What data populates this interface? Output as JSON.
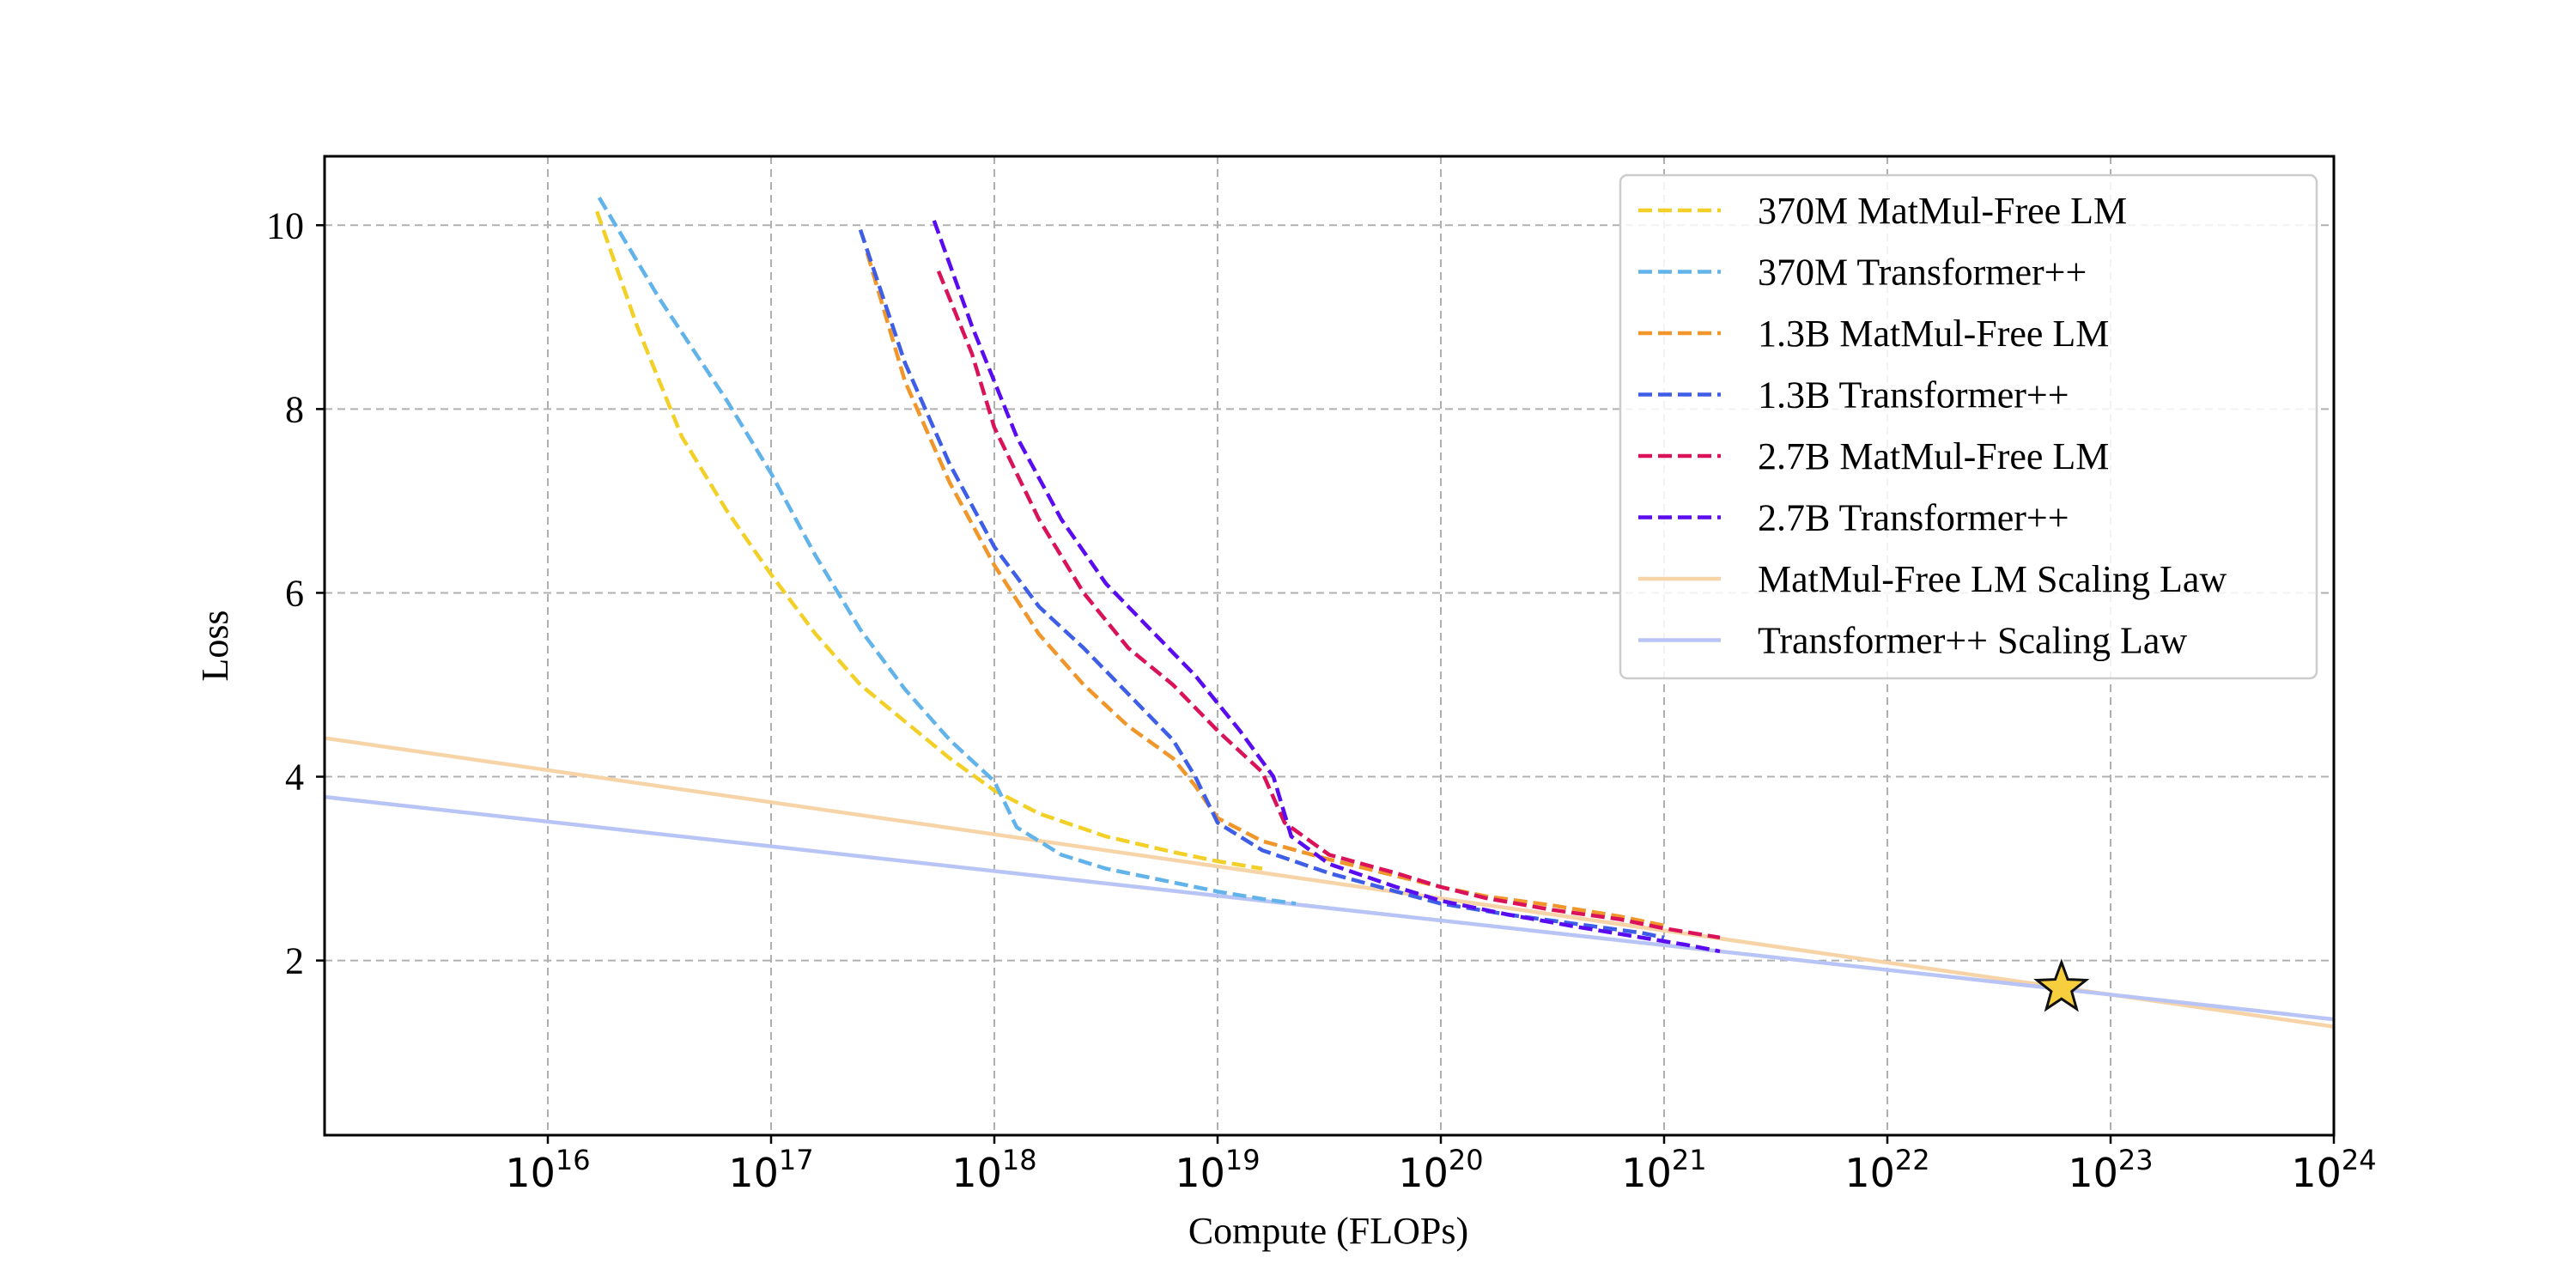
{
  "chart_data": {
    "type": "line",
    "xscale": "log",
    "xlabel": "Compute (FLOPs)",
    "ylabel": "Loss",
    "xlim": [
      1000000000000000.0,
      1e+24
    ],
    "ylim": [
      0.1,
      10.75
    ],
    "grid": true,
    "legend_position": "top-right",
    "x_ticks": [
      {
        "exp": 16,
        "base": "10",
        "sup": "16"
      },
      {
        "exp": 17,
        "base": "10",
        "sup": "17"
      },
      {
        "exp": 18,
        "base": "10",
        "sup": "18"
      },
      {
        "exp": 19,
        "base": "10",
        "sup": "19"
      },
      {
        "exp": 20,
        "base": "10",
        "sup": "20"
      },
      {
        "exp": 21,
        "base": "10",
        "sup": "21"
      },
      {
        "exp": 22,
        "base": "10",
        "sup": "22"
      },
      {
        "exp": 23,
        "base": "10",
        "sup": "23"
      },
      {
        "exp": 24,
        "base": "10",
        "sup": "24"
      }
    ],
    "y_ticks": [
      {
        "value": 2,
        "label": "2"
      },
      {
        "value": 4,
        "label": "4"
      },
      {
        "value": 6,
        "label": "6"
      },
      {
        "value": 8,
        "label": "8"
      },
      {
        "value": 10,
        "label": "10"
      }
    ],
    "series": [
      {
        "name": "370M MatMul-Free LM",
        "color": "#f2d027",
        "style": "dashed",
        "log10_x": [
          16.22,
          16.4,
          16.6,
          16.8,
          17.0,
          17.2,
          17.4,
          17.6,
          17.8,
          18.0,
          18.2,
          18.5,
          18.8,
          19.0,
          19.2
        ],
        "y": [
          10.15,
          8.9,
          7.7,
          6.9,
          6.2,
          5.55,
          5.0,
          4.6,
          4.2,
          3.85,
          3.6,
          3.35,
          3.18,
          3.08,
          3.0
        ]
      },
      {
        "name": "370M Transformer++",
        "color": "#62b3ea",
        "style": "dashed",
        "log10_x": [
          16.23,
          16.5,
          16.8,
          17.0,
          17.2,
          17.4,
          17.6,
          17.8,
          18.0,
          18.1,
          18.3,
          18.5,
          18.8,
          19.0,
          19.2,
          19.35
        ],
        "y": [
          10.3,
          9.2,
          8.1,
          7.3,
          6.4,
          5.6,
          4.95,
          4.4,
          3.95,
          3.45,
          3.15,
          3.0,
          2.85,
          2.75,
          2.67,
          2.62
        ]
      },
      {
        "name": "1.3B MatMul-Free LM",
        "color": "#f0962a",
        "style": "dashed",
        "log10_x": [
          17.43,
          17.6,
          17.8,
          18.0,
          18.2,
          18.4,
          18.6,
          18.8,
          18.9,
          19.0,
          19.2,
          19.5,
          19.8,
          20.0,
          20.2,
          20.5,
          20.8,
          21.0
        ],
        "y": [
          9.7,
          8.3,
          7.2,
          6.3,
          5.55,
          5.0,
          4.55,
          4.2,
          3.9,
          3.55,
          3.3,
          3.1,
          2.92,
          2.8,
          2.7,
          2.6,
          2.48,
          2.38
        ]
      },
      {
        "name": "1.3B Transformer++",
        "color": "#3e5ee8",
        "style": "dashed",
        "log10_x": [
          17.4,
          17.6,
          17.8,
          18.0,
          18.2,
          18.4,
          18.6,
          18.8,
          18.9,
          19.0,
          19.2,
          19.5,
          19.8,
          20.0,
          20.3,
          20.6,
          20.9,
          21.0
        ],
        "y": [
          9.95,
          8.5,
          7.4,
          6.5,
          5.85,
          5.4,
          4.9,
          4.4,
          4.0,
          3.5,
          3.2,
          2.95,
          2.75,
          2.62,
          2.5,
          2.4,
          2.3,
          2.25
        ]
      },
      {
        "name": "2.7B MatMul-Free LM",
        "color": "#d9125a",
        "style": "dashed",
        "log10_x": [
          17.75,
          17.9,
          18.0,
          18.2,
          18.4,
          18.6,
          18.8,
          19.0,
          19.2,
          19.3,
          19.5,
          19.8,
          20.0,
          20.2,
          20.5,
          20.8,
          21.0,
          21.25
        ],
        "y": [
          9.5,
          8.6,
          7.8,
          6.8,
          6.0,
          5.4,
          5.0,
          4.5,
          4.05,
          3.5,
          3.15,
          2.95,
          2.8,
          2.68,
          2.55,
          2.45,
          2.35,
          2.25
        ]
      },
      {
        "name": "2.7B Transformer++",
        "color": "#5a0cf0",
        "style": "dashed",
        "log10_x": [
          17.73,
          17.9,
          18.1,
          18.3,
          18.5,
          18.7,
          18.9,
          19.1,
          19.25,
          19.33,
          19.5,
          19.8,
          20.0,
          20.3,
          20.6,
          20.9,
          21.1,
          21.25
        ],
        "y": [
          10.05,
          8.9,
          7.7,
          6.8,
          6.1,
          5.6,
          5.1,
          4.5,
          4.0,
          3.35,
          3.05,
          2.8,
          2.65,
          2.5,
          2.37,
          2.25,
          2.17,
          2.1
        ]
      },
      {
        "name": "MatMul-Free LM Scaling Law",
        "color": "#f6d4a8",
        "style": "solid",
        "log10_x": [
          15.0,
          24.0
        ],
        "y": [
          4.42,
          1.28
        ]
      },
      {
        "name": "Transformer++ Scaling Law",
        "color": "#b8c4f5",
        "style": "solid",
        "log10_x": [
          15.0,
          24.0
        ],
        "y": [
          3.78,
          1.36
        ]
      }
    ],
    "marker": {
      "name": "star",
      "log10_x": 22.78,
      "y": 1.7,
      "color": "#f7cf3e",
      "edge_color": "#111111"
    }
  }
}
